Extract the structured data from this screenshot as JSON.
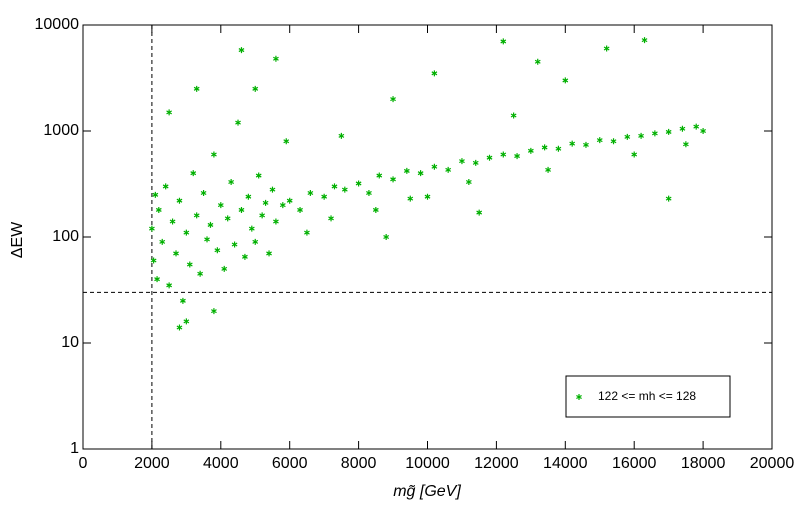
{
  "chart_data": {
    "type": "scatter",
    "x_label": "mg̃ [GeV]",
    "y_label": "ΔEW",
    "log_y": true,
    "xlim": [
      0,
      20000
    ],
    "xticks": [
      0,
      2000,
      4000,
      6000,
      8000,
      10000,
      12000,
      14000,
      16000,
      18000,
      20000
    ],
    "ylim": [
      1,
      10000
    ],
    "yticks": [
      1,
      10,
      100,
      1000,
      10000
    ],
    "vlines": [
      2000
    ],
    "hlines": [
      30
    ],
    "legend": "lower right",
    "series": [
      {
        "name": "122 <= mh <= 128",
        "color": "#00b000",
        "x": [
          2000,
          2050,
          2100,
          2150,
          2200,
          2300,
          2400,
          2500,
          2600,
          2700,
          2800,
          2900,
          3000,
          3100,
          3200,
          3300,
          3400,
          3500,
          3600,
          3700,
          3800,
          3900,
          4000,
          4100,
          4200,
          4300,
          4400,
          4500,
          4600,
          4700,
          4800,
          4900,
          5000,
          5100,
          5200,
          5300,
          5400,
          5500,
          5600,
          5800,
          5900,
          3000,
          2500,
          4600,
          3300,
          5600,
          2800,
          3800,
          5000,
          6000,
          6300,
          6600,
          7000,
          7300,
          7600,
          8000,
          8300,
          8600,
          9000,
          9400,
          9800,
          10200,
          10600,
          11000,
          11400,
          11800,
          12200,
          12600,
          13000,
          13400,
          13800,
          14200,
          14600,
          15000,
          15400,
          15800,
          16200,
          16600,
          17000,
          17400,
          17800,
          18000,
          7200,
          8500,
          9500,
          11500,
          10200,
          12200,
          13200,
          15200,
          16300,
          14000,
          9000,
          17000,
          12500,
          7500,
          6500,
          8800,
          10000,
          11200,
          13500,
          16000,
          17500
        ],
        "values": [
          120,
          60,
          250,
          40,
          180,
          90,
          300,
          35,
          140,
          70,
          220,
          25,
          110,
          55,
          400,
          160,
          45,
          260,
          95,
          130,
          600,
          75,
          200,
          50,
          150,
          330,
          85,
          1200,
          180,
          65,
          240,
          120,
          90,
          380,
          160,
          210,
          70,
          280,
          140,
          200,
          800,
          16,
          1500,
          5800,
          2500,
          4800,
          14,
          20,
          2500,
          220,
          180,
          260,
          240,
          300,
          280,
          320,
          260,
          380,
          350,
          420,
          400,
          460,
          430,
          520,
          500,
          560,
          600,
          580,
          650,
          700,
          680,
          760,
          740,
          820,
          800,
          880,
          900,
          950,
          980,
          1050,
          1100,
          1000,
          150,
          180,
          230,
          170,
          3500,
          7000,
          4500,
          6000,
          7200,
          3000,
          2000,
          230,
          1400,
          900,
          110,
          100,
          240,
          330,
          430,
          600,
          750
        ]
      }
    ]
  }
}
